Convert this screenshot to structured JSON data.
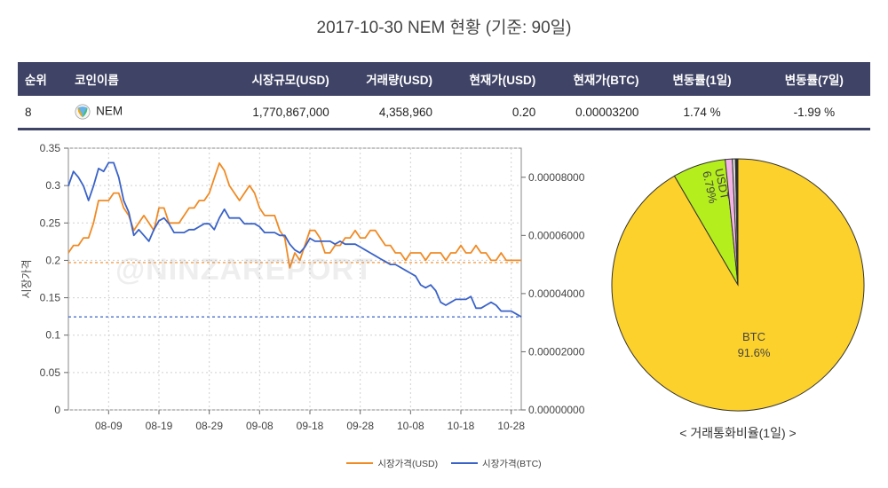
{
  "title": "2017-10-30 NEM 현황 (기준: 90일)",
  "table": {
    "headers": [
      "순위",
      "코인이름",
      "시장규모(USD)",
      "거래량(USD)",
      "현재가(USD)",
      "현재가(BTC)",
      "변동률(1일)",
      "변동률(7일)"
    ],
    "row": {
      "rank": "8",
      "name": "NEM",
      "market_cap": "1,770,867,000",
      "volume": "4,358,960",
      "price_usd": "0.20",
      "price_btc": "0.00003200",
      "change_1d": "1.74 %",
      "change_7d": "-1.99 %"
    }
  },
  "watermark": "@NINZAREPORT",
  "pie_caption": "< 거래통화비율(1일) >",
  "colors": {
    "usd_line": "#f08a24",
    "btc_line": "#3a63c8",
    "header_bg": "#3f4365",
    "btc_slice": "#fdd12b",
    "usdt_slice": "#b4ee1c",
    "pink_slice": "#f5b4e6"
  },
  "chart_data": [
    {
      "type": "line",
      "ylabel": "시장가격",
      "x_tick_labels": [
        "08-09",
        "08-19",
        "08-29",
        "09-08",
        "09-18",
        "09-28",
        "10-08",
        "10-18",
        "10-28"
      ],
      "x_range": [
        "2017-08-01",
        "2017-10-30"
      ],
      "y_left_ticks": [
        "0",
        "0.05",
        "0.1",
        "0.15",
        "0.2",
        "0.25",
        "0.3",
        "0.35"
      ],
      "y_left_range": [
        0,
        0.35
      ],
      "y_right_ticks": [
        "0.00000000",
        "0.00002000",
        "0.00004000",
        "0.00006000",
        "0.00008000"
      ],
      "y_right_range": [
        0,
        9e-05
      ],
      "grid": true,
      "legend_position": "bottom",
      "reference_lines": {
        "usd": 0.197,
        "btc": 3.2e-05
      },
      "series": [
        {
          "name": "시장가격(USD)",
          "axis": "left",
          "values": [
            0.21,
            0.22,
            0.22,
            0.23,
            0.23,
            0.25,
            0.28,
            0.28,
            0.28,
            0.29,
            0.29,
            0.27,
            0.26,
            0.24,
            0.25,
            0.26,
            0.25,
            0.24,
            0.27,
            0.27,
            0.25,
            0.25,
            0.25,
            0.26,
            0.27,
            0.27,
            0.28,
            0.28,
            0.29,
            0.31,
            0.33,
            0.32,
            0.3,
            0.29,
            0.28,
            0.29,
            0.3,
            0.29,
            0.27,
            0.26,
            0.26,
            0.26,
            0.24,
            0.23,
            0.19,
            0.21,
            0.2,
            0.22,
            0.24,
            0.24,
            0.23,
            0.21,
            0.21,
            0.22,
            0.22,
            0.23,
            0.23,
            0.24,
            0.23,
            0.23,
            0.24,
            0.24,
            0.23,
            0.22,
            0.22,
            0.21,
            0.21,
            0.2,
            0.21,
            0.21,
            0.21,
            0.2,
            0.21,
            0.21,
            0.21,
            0.2,
            0.21,
            0.21,
            0.22,
            0.21,
            0.21,
            0.22,
            0.21,
            0.21,
            0.2,
            0.2,
            0.21,
            0.2,
            0.2,
            0.2,
            0.2
          ]
        },
        {
          "name": "시장가격(BTC)",
          "axis": "right",
          "values": [
            7.7e-05,
            8.2e-05,
            8e-05,
            7.7e-05,
            7.2e-05,
            7.7e-05,
            8.3e-05,
            8.2e-05,
            8.5e-05,
            8.5e-05,
            8e-05,
            7.2e-05,
            6.8e-05,
            6e-05,
            6.2e-05,
            6e-05,
            5.8e-05,
            6.2e-05,
            6.5e-05,
            6.6e-05,
            6.4e-05,
            6.1e-05,
            6.1e-05,
            6.1e-05,
            6.2e-05,
            6.2e-05,
            6.3e-05,
            6.4e-05,
            6.4e-05,
            6.2e-05,
            6.6e-05,
            6.9e-05,
            6.6e-05,
            6.6e-05,
            6.6e-05,
            6.4e-05,
            6.4e-05,
            6.4e-05,
            6.3e-05,
            6.1e-05,
            6.1e-05,
            6.1e-05,
            6e-05,
            6e-05,
            5.7e-05,
            5.5e-05,
            5.4e-05,
            5.6e-05,
            5.9e-05,
            5.8e-05,
            5.8e-05,
            5.8e-05,
            5.8e-05,
            5.7e-05,
            5.8e-05,
            5.7e-05,
            5.7e-05,
            5.7e-05,
            5.6e-05,
            5.5e-05,
            5.4e-05,
            5.3e-05,
            5.2e-05,
            5.1e-05,
            5e-05,
            5e-05,
            4.9e-05,
            4.8e-05,
            4.7e-05,
            4.6e-05,
            4.3e-05,
            4.2e-05,
            4.3e-05,
            4.1e-05,
            3.7e-05,
            3.6e-05,
            3.7e-05,
            3.8e-05,
            3.8e-05,
            3.8e-05,
            3.9e-05,
            3.5e-05,
            3.5e-05,
            3.6e-05,
            3.7e-05,
            3.6e-05,
            3.4e-05,
            3.4e-05,
            3.4e-05,
            3.3e-05,
            3.2e-05
          ]
        }
      ]
    },
    {
      "type": "pie",
      "slices": [
        {
          "label": "BTC",
          "value": 91.6,
          "display": "91.6%",
          "color": "#fdd12b"
        },
        {
          "label": "USDT",
          "value": 6.79,
          "display": "6.79%",
          "color": "#b4ee1c"
        },
        {
          "label": "",
          "value": 0.9,
          "display": "",
          "color": "#f5b4e6"
        },
        {
          "label": "",
          "value": 0.4,
          "display": "",
          "color": "#d9d9d9"
        },
        {
          "label": "",
          "value": 0.31,
          "display": "",
          "color": "#2b2b2b"
        }
      ]
    }
  ]
}
